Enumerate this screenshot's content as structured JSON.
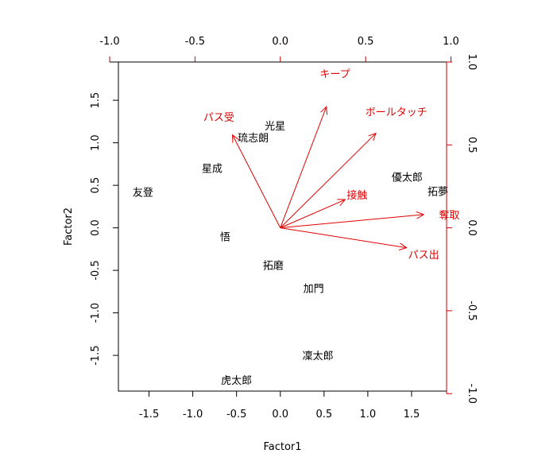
{
  "chart_data": {
    "type": "scatter",
    "subtype": "biplot",
    "xlabel": "Factor1",
    "ylabel": "Factor2",
    "xlim": [
      -1.85,
      1.9
    ],
    "ylim": [
      -1.92,
      1.95
    ],
    "x_ticks": [
      "-1.5",
      "-1.0",
      "-0.5",
      "0.0",
      "0.5",
      "1.0",
      "1.5"
    ],
    "y_ticks": [
      "-1.5",
      "-1.0",
      "-0.5",
      "0.0",
      "0.5",
      "1.0",
      "1.5"
    ],
    "top_ticks": [
      "-1.0",
      "-0.5",
      "0.0",
      "0.5",
      "1.0"
    ],
    "right_ticks": [
      "-1.0",
      "-0.5",
      "0.0",
      "0.5",
      "1.0"
    ],
    "loading_scale": 1.95,
    "grid": false,
    "legend": "none",
    "colors": {
      "observations": "#000000",
      "variables": "#e00000"
    },
    "observations": [
      {
        "label": "友登",
        "x": -1.57,
        "y": 0.42
      },
      {
        "label": "星成",
        "x": -0.78,
        "y": 0.7
      },
      {
        "label": "琉志朗",
        "x": -0.31,
        "y": 1.06
      },
      {
        "label": "光星",
        "x": -0.06,
        "y": 1.2
      },
      {
        "label": "悟",
        "x": -0.63,
        "y": -0.1
      },
      {
        "label": "拓磨",
        "x": -0.08,
        "y": -0.44
      },
      {
        "label": "加門",
        "x": 0.38,
        "y": -0.71
      },
      {
        "label": "凜太郎",
        "x": 0.43,
        "y": -1.5
      },
      {
        "label": "虎太郎",
        "x": -0.5,
        "y": -1.79
      },
      {
        "label": "優太郎",
        "x": 1.45,
        "y": 0.6
      },
      {
        "label": "拓夢",
        "x": 1.8,
        "y": 0.43
      }
    ],
    "variables": [
      {
        "label": "キープ",
        "x": 0.27,
        "y": 0.73,
        "label_x": 0.32,
        "label_y": 0.93
      },
      {
        "label": "ボールタッチ",
        "x": 0.56,
        "y": 0.57,
        "label_x": 0.68,
        "label_y": 0.7
      },
      {
        "label": "パス受",
        "x": -0.28,
        "y": 0.56,
        "label_x": -0.36,
        "label_y": 0.67
      },
      {
        "label": "接触",
        "x": 0.38,
        "y": 0.17,
        "label_x": 0.45,
        "label_y": 0.2
      },
      {
        "label": "奪取",
        "x": 0.84,
        "y": 0.08,
        "label_x": 0.99,
        "label_y": 0.08
      },
      {
        "label": "パス出",
        "x": 0.74,
        "y": -0.12,
        "label_x": 0.84,
        "label_y": -0.16
      }
    ]
  }
}
